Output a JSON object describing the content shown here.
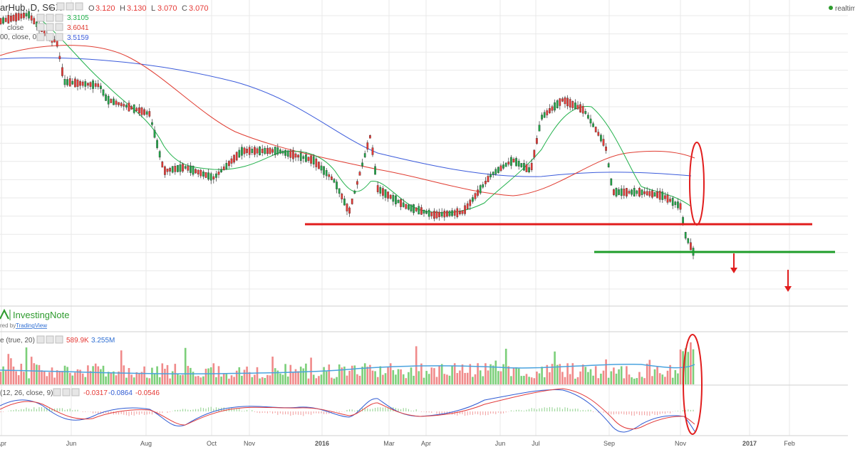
{
  "header": {
    "title": "arHub, D, SGX",
    "ohlc": [
      {
        "label": "O",
        "value": "3.120"
      },
      {
        "label": "H",
        "value": "3.130"
      },
      {
        "label": "L",
        "value": "3.070"
      },
      {
        "label": "C",
        "value": "3.070"
      }
    ],
    "realtime": "realtime"
  },
  "indicators": {
    "ma_short": {
      "label": "",
      "value": "3.3105",
      "color": "#22b14c"
    },
    "ma_mid": {
      "label": "close",
      "value": "3.6041",
      "color": "#e03c31"
    },
    "ma_long": {
      "label": "00, close, 0)",
      "value": "3.5159",
      "color": "#3b5bdb"
    }
  },
  "branding": {
    "logo": "InvestingNote",
    "powered": "red by",
    "tv": "TradingView"
  },
  "volume_panel": {
    "label": "e (true, 20)",
    "value1": "589.9K",
    "value2": "3.255M"
  },
  "macd_panel": {
    "label": "(12, 26, close, 9)",
    "v1": "-0.0317",
    "v2": "-0.0864",
    "v3": "-0.0546"
  },
  "colors": {
    "up": "#22a548",
    "down": "#e53935",
    "vol_up": "#7ccf7a",
    "vol_down": "#f08a8a",
    "support": "#e11d1d",
    "target": "#1f9d2a",
    "ma_volume": "#4aa3df",
    "macd": "#2f5bd3",
    "signal": "#e23b3b",
    "grid": "#e9e9e9"
  },
  "chart_data": {
    "type": "candlestick",
    "x_ticks": [
      "Apr",
      "Jun",
      "Aug",
      "Oct",
      "Nov",
      "2016",
      "Mar",
      "Apr",
      "Jun",
      "Jul",
      "Sep",
      "Nov",
      "2017",
      "Feb"
    ],
    "price_series": [
      {
        "name": "",
        "last": 3.3105
      },
      {
        "name": "",
        "last": 3.6041
      },
      {
        "name": "",
        "last": 3.5159
      }
    ],
    "last_close": 3.07,
    "annotations": [
      "support line (red)",
      "breakdown target line (green)",
      "down arrows",
      "red ellipse on moving averages",
      "red ellipse on volume and MACD"
    ]
  }
}
